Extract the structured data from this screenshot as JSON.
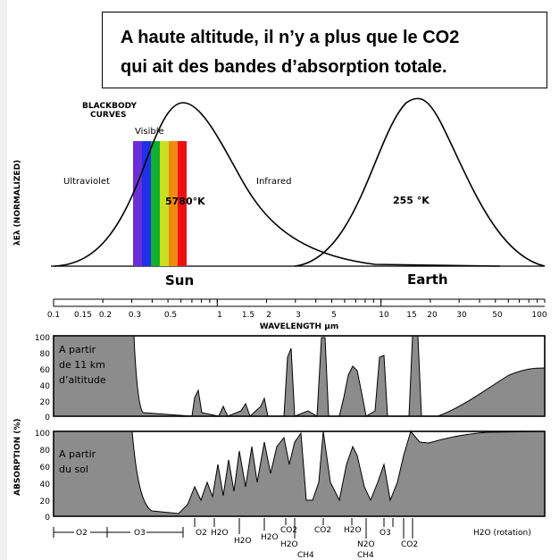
{
  "callout": {
    "line1": "A haute altitude, il n’y a plus que le CO2",
    "line2": "qui ait des bandes d’absorption totale."
  },
  "blackbody": {
    "title_line1": "BLACKBODY",
    "title_line2": "CURVES",
    "ylabel": "λEλ (NORMALIZED)",
    "visible": "Visible",
    "ultraviolet": "Ultraviolet",
    "infrared": "Infrared",
    "sun_temp": "5780°K",
    "earth_temp": "255 °K",
    "sun_label": "Sun",
    "earth_label": "Earth",
    "spectrum_colors": [
      "#6a2fd6",
      "#2030e8",
      "#10b030",
      "#c8e020",
      "#f08a10",
      "#ee1010"
    ]
  },
  "wavelength_axis": {
    "label": "WAVELENGTH  μm",
    "ticks": [
      "0.1",
      "0.15",
      "0.2",
      "0.3",
      "0.5",
      "1",
      "1.5",
      "2",
      "3",
      "5",
      "10",
      "15",
      "20",
      "30",
      "50",
      "100"
    ]
  },
  "absorption": {
    "ylabel": "ABSORPTION (%)",
    "yticks": [
      "100",
      "80",
      "60",
      "40",
      "20",
      "0"
    ],
    "panel1_label": [
      "A partir",
      "de 11 km",
      "d’altitude"
    ],
    "panel2_label": [
      "A partir",
      "du sol"
    ],
    "molecules": [
      "O2",
      "O3",
      "O2",
      "H2O",
      "H2O",
      "H2O",
      "CO2",
      "H2O",
      "CH4",
      "CO2",
      "H2O",
      "N2O",
      "CH4",
      "O3",
      "CO2",
      "H2O (rotation)"
    ],
    "fill_color": "#8c8c8c"
  }
}
